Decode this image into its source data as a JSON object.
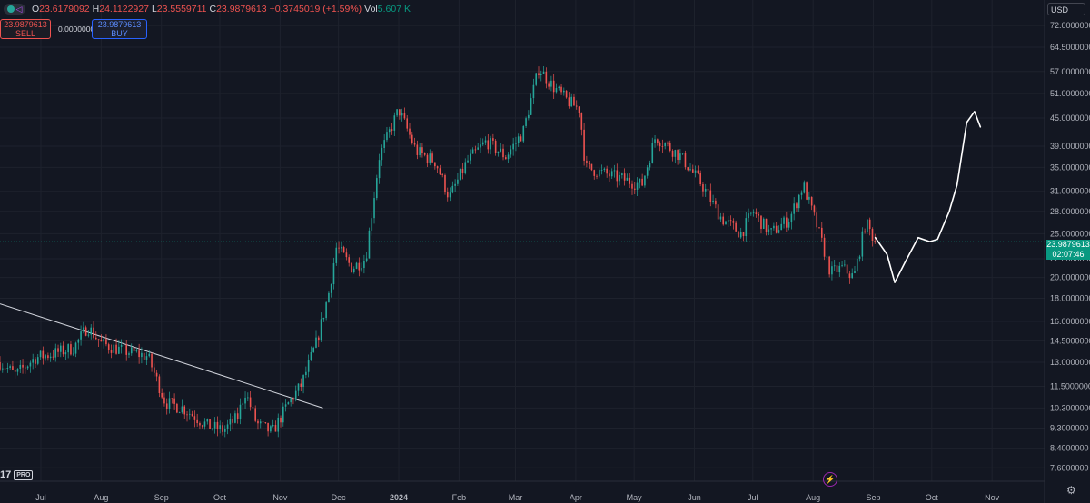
{
  "header": {
    "open_label": "O",
    "open_value": "23.6179092",
    "high_label": "H",
    "high_value": "24.1122927",
    "low_label": "L",
    "low_value": "23.5559711",
    "close_label": "C",
    "close_value": "23.9879613",
    "change_value": "+0.3745019 (+1.59%)",
    "volume_label": "Vol",
    "volume_value": "5.607 K",
    "currency": "USD"
  },
  "trade_panel": {
    "sell_price": "23.9879613",
    "sell_label": "SELL",
    "spread": "0.0000000",
    "buy_price": "23.9879613",
    "buy_label": "BUY"
  },
  "price_tag": {
    "price": "23.9879613",
    "countdown": "02:07:46"
  },
  "branding": {
    "logo_text": "17",
    "plan": "PRO"
  },
  "colors": {
    "up": "#26a69a",
    "down": "#ef5350",
    "background": "#131722",
    "accent": "#2962ff"
  },
  "chart_data": {
    "type": "candlestick",
    "y_scale": "log",
    "ylim": [
      7.1,
      82.0
    ],
    "y_ticks": [
      "72.0000000",
      "64.5000000",
      "57.0000000",
      "51.0000000",
      "45.0000000",
      "39.0000000",
      "35.0000000",
      "31.0000000",
      "28.0000000",
      "25.0000000",
      "22.0000000",
      "20.0000000",
      "18.0000000",
      "16.0000000",
      "14.5000000",
      "13.0000000",
      "11.5000000",
      "10.3000000",
      "9.3000000",
      "8.4000000",
      "7.6000000"
    ],
    "y_tick_values": [
      72.0,
      64.5,
      57.0,
      51.0,
      45.0,
      39.0,
      35.0,
      31.0,
      28.0,
      25.0,
      22.0,
      20.0,
      18.0,
      16.0,
      14.5,
      13.0,
      11.5,
      10.3,
      9.3,
      8.4,
      7.6
    ],
    "x_ticks": [
      "Jul",
      "Aug",
      "Sep",
      "Oct",
      "Nov",
      "Dec",
      "2024",
      "Feb",
      "Mar",
      "Apr",
      "May",
      "Jun",
      "Jul",
      "Aug",
      "Sep",
      "Oct",
      "Nov"
    ],
    "x_tick_dates": [
      "2023-07-01",
      "2023-08-01",
      "2023-09-01",
      "2023-10-01",
      "2023-11-01",
      "2023-12-01",
      "2024-01-01",
      "2024-02-01",
      "2024-03-01",
      "2024-04-01",
      "2024-05-01",
      "2024-06-01",
      "2024-07-01",
      "2024-08-01",
      "2024-09-01",
      "2024-10-01",
      "2024-11-01"
    ],
    "x_range": [
      "2023-06-10",
      "2024-11-28"
    ],
    "last_price": 23.9879613,
    "price_path": [
      {
        "date": "2023-06-10",
        "price": 13.0
      },
      {
        "date": "2023-06-18",
        "price": 12.2
      },
      {
        "date": "2023-06-28",
        "price": 13.3
      },
      {
        "date": "2023-07-08",
        "price": 13.6
      },
      {
        "date": "2023-07-18",
        "price": 14.0
      },
      {
        "date": "2023-07-25",
        "price": 15.6
      },
      {
        "date": "2023-08-01",
        "price": 14.3
      },
      {
        "date": "2023-08-12",
        "price": 13.8
      },
      {
        "date": "2023-08-25",
        "price": 13.4
      },
      {
        "date": "2023-09-03",
        "price": 10.6
      },
      {
        "date": "2023-09-12",
        "price": 10.3
      },
      {
        "date": "2023-09-25",
        "price": 9.4
      },
      {
        "date": "2023-10-03",
        "price": 9.2
      },
      {
        "date": "2023-10-10",
        "price": 9.8
      },
      {
        "date": "2023-10-14",
        "price": 11.2
      },
      {
        "date": "2023-10-20",
        "price": 9.5
      },
      {
        "date": "2023-10-28",
        "price": 9.1
      },
      {
        "date": "2023-11-05",
        "price": 10.5
      },
      {
        "date": "2023-11-12",
        "price": 11.6
      },
      {
        "date": "2023-11-20",
        "price": 14.5
      },
      {
        "date": "2023-11-26",
        "price": 18.5
      },
      {
        "date": "2023-11-30",
        "price": 23.4
      },
      {
        "date": "2023-12-08",
        "price": 21.0
      },
      {
        "date": "2023-12-15",
        "price": 22.0
      },
      {
        "date": "2023-12-22",
        "price": 37.0
      },
      {
        "date": "2024-01-01",
        "price": 47.0
      },
      {
        "date": "2024-01-10",
        "price": 38.0
      },
      {
        "date": "2024-01-20",
        "price": 36.0
      },
      {
        "date": "2024-01-27",
        "price": 30.0
      },
      {
        "date": "2024-02-05",
        "price": 36.0
      },
      {
        "date": "2024-02-15",
        "price": 40.0
      },
      {
        "date": "2024-02-25",
        "price": 37.0
      },
      {
        "date": "2024-03-05",
        "price": 42.0
      },
      {
        "date": "2024-03-13",
        "price": 58.0
      },
      {
        "date": "2024-03-20",
        "price": 53.0
      },
      {
        "date": "2024-03-28",
        "price": 49.0
      },
      {
        "date": "2024-04-03",
        "price": 47.0
      },
      {
        "date": "2024-04-06",
        "price": 35.0
      },
      {
        "date": "2024-04-15",
        "price": 34.0
      },
      {
        "date": "2024-04-25",
        "price": 33.0
      },
      {
        "date": "2024-05-05",
        "price": 32.0
      },
      {
        "date": "2024-05-12",
        "price": 41.0
      },
      {
        "date": "2024-05-25",
        "price": 37.0
      },
      {
        "date": "2024-06-05",
        "price": 32.0
      },
      {
        "date": "2024-06-15",
        "price": 27.0
      },
      {
        "date": "2024-06-25",
        "price": 25.0
      },
      {
        "date": "2024-07-01",
        "price": 28.0
      },
      {
        "date": "2024-07-10",
        "price": 25.0
      },
      {
        "date": "2024-07-20",
        "price": 27.0
      },
      {
        "date": "2024-07-27",
        "price": 32.0
      },
      {
        "date": "2024-08-03",
        "price": 26.0
      },
      {
        "date": "2024-08-10",
        "price": 20.5
      },
      {
        "date": "2024-08-16",
        "price": 21.0
      },
      {
        "date": "2024-08-22",
        "price": 20.0
      },
      {
        "date": "2024-08-28",
        "price": 26.5
      },
      {
        "date": "2024-09-02",
        "price": 23.99
      }
    ],
    "trendline": [
      {
        "date": "2023-06-10",
        "price": 17.5
      },
      {
        "date": "2023-11-23",
        "price": 10.3
      }
    ],
    "projection": [
      {
        "date": "2024-09-02",
        "price": 24.5
      },
      {
        "date": "2024-09-08",
        "price": 22.5
      },
      {
        "date": "2024-09-12",
        "price": 19.5
      },
      {
        "date": "2024-09-17",
        "price": 21.5
      },
      {
        "date": "2024-09-24",
        "price": 24.5
      },
      {
        "date": "2024-09-30",
        "price": 24.0
      },
      {
        "date": "2024-10-04",
        "price": 24.3
      },
      {
        "date": "2024-10-10",
        "price": 28.0
      },
      {
        "date": "2024-10-14",
        "price": 32.0
      },
      {
        "date": "2024-10-19",
        "price": 44.0
      },
      {
        "date": "2024-10-23",
        "price": 46.5
      },
      {
        "date": "2024-10-26",
        "price": 43.0
      }
    ]
  }
}
